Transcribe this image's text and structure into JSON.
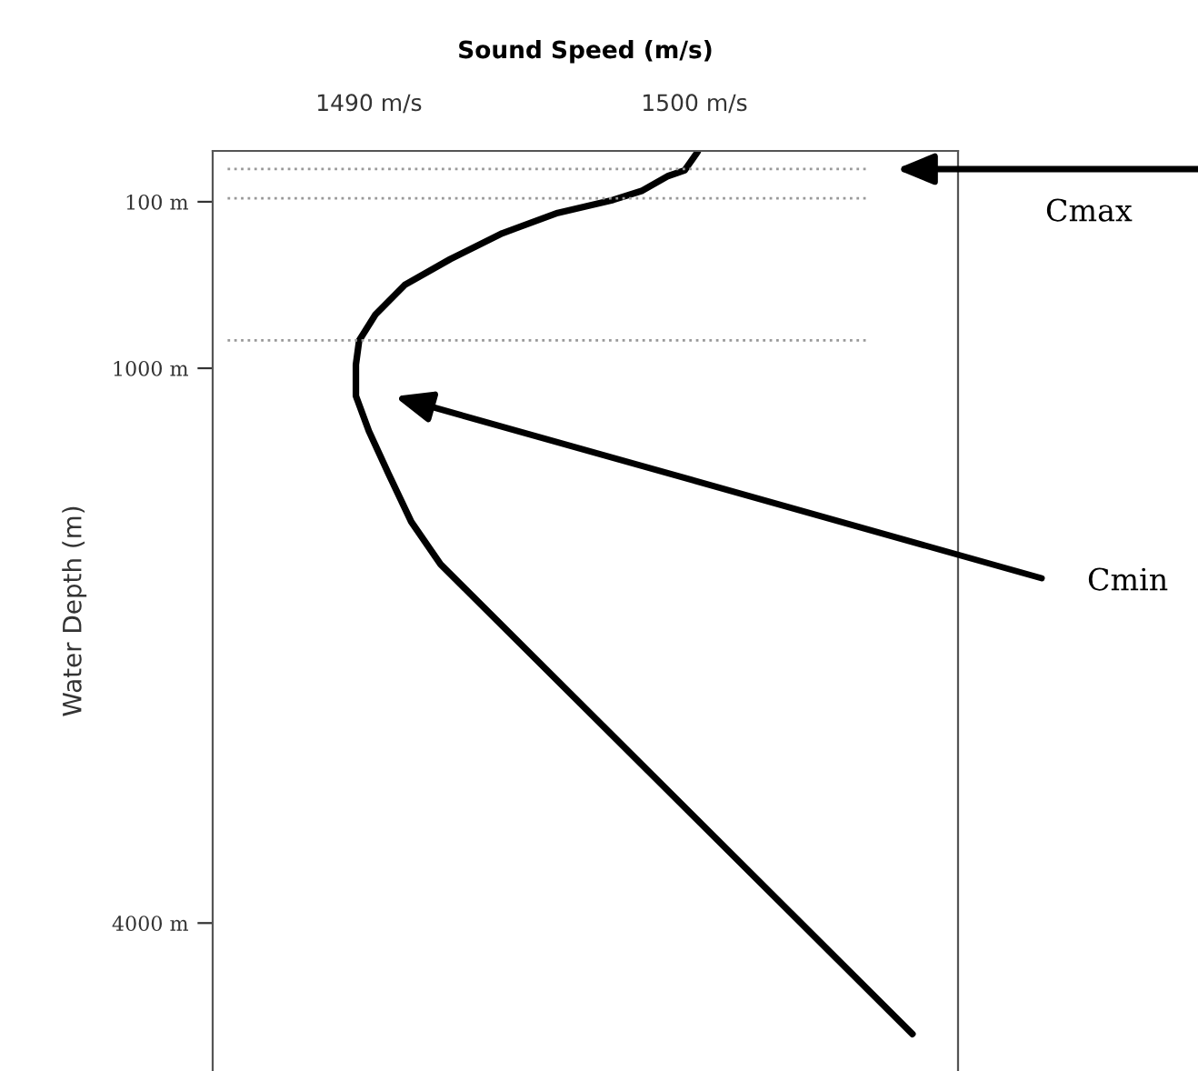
{
  "chart_data": {
    "type": "line",
    "xlabel": "Sound Speed (m/s)",
    "ylabel": "Water Depth (m)",
    "series": [
      {
        "color": "#000000",
        "x": [
          1500.1,
          1499.7,
          1499.2,
          1498.4,
          1497.5,
          1495.8,
          1494.1,
          1492.5,
          1491.1,
          1490.2,
          1489.7,
          1489.6,
          1489.6,
          1490.0,
          1490.6,
          1491.3,
          1492.2,
          1506.7
        ],
        "values": [
          -170,
          -70,
          -40,
          40,
          90,
          160,
          270,
          410,
          550,
          710,
          850,
          980,
          1150,
          1340,
          1570,
          1830,
          2060,
          4600
        ]
      }
    ],
    "xlim": [
      1485.2,
      1508.1
    ],
    "xticks": [
      {
        "value": 1490,
        "label": "1490 m/s"
      },
      {
        "value": 1500,
        "label": "1500 m/s"
      }
    ],
    "ylim": [
      4800,
      -175
    ],
    "yticks": [
      {
        "value": 100,
        "label": "100 m"
      },
      {
        "value": 1000,
        "label": "1000 m"
      },
      {
        "value": 4000,
        "label": "4000 m"
      }
    ],
    "ref_lines": [
      {
        "axis": "y",
        "value": -77,
        "color": "#999999",
        "line_style": "dotted"
      },
      {
        "axis": "y",
        "value": 81,
        "color": "#999999",
        "line_style": "dotted"
      },
      {
        "axis": "y",
        "value": 849,
        "color": "#999999",
        "line_style": "dotted"
      }
    ],
    "annotations": [
      "Cmax",
      "Cmin"
    ],
    "grid": false,
    "legend": false,
    "marker": "none",
    "line_style": "solid"
  }
}
